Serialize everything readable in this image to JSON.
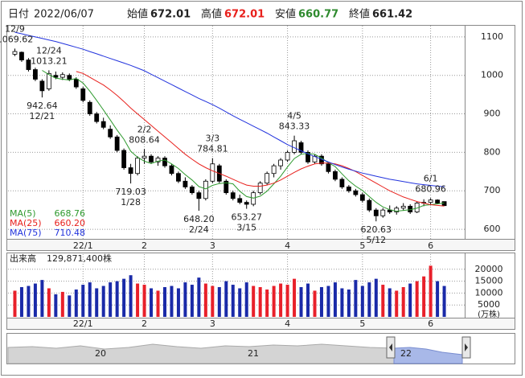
{
  "header": {
    "date_label": "日付",
    "date": "2022/06/07",
    "open_label": "始値",
    "high_label": "高値",
    "low_label": "安値",
    "close_label": "終値"
  },
  "chart_data": {
    "type": "candlestick",
    "ylim": [
      573,
      1129
    ],
    "yticks": [
      1100,
      1000,
      900,
      800,
      700,
      600
    ],
    "grid": true,
    "xlim": [
      -1,
      66
    ],
    "xticks": [
      {
        "value": 10,
        "label": "22/1"
      },
      {
        "value": 19,
        "label": "2"
      },
      {
        "value": 29,
        "label": "3"
      },
      {
        "value": 40,
        "label": "4"
      },
      {
        "value": 51,
        "label": "5"
      },
      {
        "value": 61,
        "label": "6"
      }
    ],
    "up_color": "#ffffff",
    "down_color": "#000000",
    "candles": {
      "open": [
        1055,
        1060,
        1040,
        1015,
        985,
        965,
        1000,
        995,
        1000,
        990,
        965,
        930,
        900,
        880,
        860,
        840,
        805,
        760,
        745,
        785,
        790,
        775,
        785,
        765,
        745,
        725,
        710,
        695,
        680,
        725,
        765,
        725,
        695,
        680,
        670,
        665,
        695,
        720,
        745,
        765,
        780,
        800,
        825,
        800,
        775,
        790,
        770,
        750,
        730,
        710,
        700,
        690,
        675,
        650,
        635,
        650,
        645,
        655,
        660,
        645,
        668,
        670,
        676,
        672.01
      ],
      "high": [
        1069.62,
        1062,
        1045,
        1020,
        990,
        1013.21,
        1010,
        1008,
        1005,
        995,
        970,
        935,
        905,
        890,
        870,
        845,
        810,
        770,
        790,
        808.64,
        795,
        790,
        790,
        770,
        750,
        735,
        715,
        700,
        730,
        784.81,
        770,
        730,
        700,
        690,
        675,
        700,
        725,
        750,
        770,
        785,
        805,
        843.33,
        830,
        805,
        795,
        795,
        775,
        755,
        735,
        715,
        705,
        695,
        680,
        655,
        655,
        662,
        660,
        668,
        665,
        672,
        678,
        680.96,
        678,
        672.01
      ],
      "low": [
        1050,
        1035,
        1010,
        985,
        942.64,
        960,
        990,
        988,
        985,
        965,
        930,
        895,
        875,
        860,
        835,
        800,
        755,
        719.03,
        740,
        770,
        770,
        765,
        760,
        740,
        720,
        705,
        690,
        648.2,
        675,
        720,
        720,
        690,
        675,
        665,
        653.27,
        660,
        690,
        715,
        735,
        755,
        775,
        795,
        795,
        770,
        770,
        765,
        745,
        725,
        705,
        695,
        685,
        670,
        645,
        620.63,
        630,
        640,
        638,
        648,
        640,
        642,
        660,
        662,
        665,
        660.77
      ],
      "close": [
        1062,
        1040,
        1015,
        990,
        960,
        1005,
        995,
        1002,
        990,
        970,
        935,
        900,
        880,
        865,
        840,
        805,
        760,
        745,
        785,
        790,
        775,
        785,
        765,
        745,
        725,
        710,
        695,
        680,
        725,
        770,
        725,
        695,
        680,
        670,
        665,
        695,
        720,
        745,
        765,
        780,
        800,
        830,
        800,
        775,
        790,
        770,
        750,
        730,
        710,
        700,
        690,
        675,
        650,
        635,
        650,
        645,
        655,
        660,
        645,
        668,
        670,
        676,
        668,
        661.42
      ]
    },
    "series": [
      {
        "name": "MA(5)",
        "color": "#2e9a2e",
        "legend_value": "668.76",
        "values": [
          null,
          null,
          null,
          null,
          1013,
          1002,
          993,
          990,
          988,
          992,
          980,
          959,
          935,
          910,
          884,
          858,
          834,
          803,
          787,
          777,
          771,
          777,
          780,
          770,
          758,
          742,
          728,
          711,
          705,
          714,
          719,
          721,
          718,
          699,
          685,
          681,
          686,
          699,
          718,
          738,
          762,
          784,
          795,
          797,
          795,
          785,
          773,
          763,
          744,
          726,
          712,
          701,
          685,
          670,
          658,
          651,
          647,
          649,
          651,
          655,
          662,
          664,
          666,
          668.76
        ]
      },
      {
        "name": "MA(25)",
        "color": "#e8201c",
        "legend_value": "660.20",
        "values": [
          null,
          null,
          null,
          null,
          null,
          null,
          null,
          null,
          null,
          1010,
          1005,
          995,
          985,
          975,
          962,
          948,
          932,
          915,
          900,
          885,
          870,
          855,
          840,
          825,
          810,
          795,
          782,
          770,
          760,
          752,
          745,
          738,
          730,
          722,
          715,
          712,
          712,
          715,
          720,
          728,
          738,
          748,
          757,
          764,
          770,
          772,
          772,
          770,
          765,
          758,
          750,
          740,
          730,
          720,
          710,
          700,
          692,
          684,
          678,
          672,
          668,
          664,
          662,
          660.2
        ]
      },
      {
        "name": "MA(75)",
        "color": "#2233dd",
        "legend_value": "710.48",
        "values": [
          1112,
          1108,
          1104,
          1100,
          1096,
          1092,
          1088,
          1083,
          1078,
          1073,
          1068,
          1062,
          1056,
          1050,
          1044,
          1038,
          1032,
          1026,
          1019,
          1012,
          1003,
          994,
          985,
          976,
          967,
          958,
          949,
          940,
          932,
          924,
          915,
          905,
          895,
          886,
          877,
          868,
          859,
          850,
          840,
          830,
          820,
          812,
          804,
          796,
          789,
          782,
          775,
          768,
          762,
          756,
          751,
          746,
          742,
          738,
          734,
          730,
          727,
          724,
          721,
          718,
          716,
          714,
          712,
          710.48
        ]
      }
    ],
    "annotations": [
      {
        "date": "12/9",
        "value": 1069.62
      },
      {
        "date": "12/24",
        "value": 1013.21
      },
      {
        "date": "12/21",
        "value": 942.64
      },
      {
        "date": "1/28",
        "value": 719.03
      },
      {
        "date": "2/2",
        "value": 808.64
      },
      {
        "date": "2/24",
        "value": 648.2,
        "label": "648.20"
      },
      {
        "date": "3/3",
        "value": 784.81
      },
      {
        "date": "3/15",
        "value": 653.27
      },
      {
        "date": "4/5",
        "value": 843.33
      },
      {
        "date": "5/12",
        "value": 620.63
      },
      {
        "date": "6/1",
        "value": 680.96
      }
    ],
    "volume": {
      "title": "出来高",
      "latest": "129,871,400株",
      "unit": "(万株)",
      "up_color": "#e8202a",
      "down_color": "#1a2aa8",
      "ylim": [
        0,
        25000
      ],
      "yticks": [
        20000,
        15000,
        10000,
        5000
      ],
      "values": [
        11000,
        12500,
        13000,
        14000,
        15500,
        12000,
        9500,
        10500,
        9000,
        11500,
        13500,
        14500,
        12000,
        13000,
        14500,
        15000,
        16000,
        17500,
        14000,
        13500,
        12000,
        11000,
        12500,
        13000,
        12000,
        14500,
        13500,
        16500,
        14000,
        13000,
        12500,
        15000,
        13500,
        12000,
        14500,
        13000,
        12500,
        11500,
        13000,
        14000,
        13500,
        16000,
        12500,
        14000,
        11000,
        12500,
        13000,
        14500,
        12000,
        11500,
        15500,
        13000,
        14500,
        16000,
        13500,
        12000,
        11000,
        12500,
        14000,
        15000,
        17000,
        21500,
        15000,
        12987.14
      ]
    }
  },
  "navigator": {
    "labels": [
      "20",
      "21",
      "22"
    ]
  }
}
